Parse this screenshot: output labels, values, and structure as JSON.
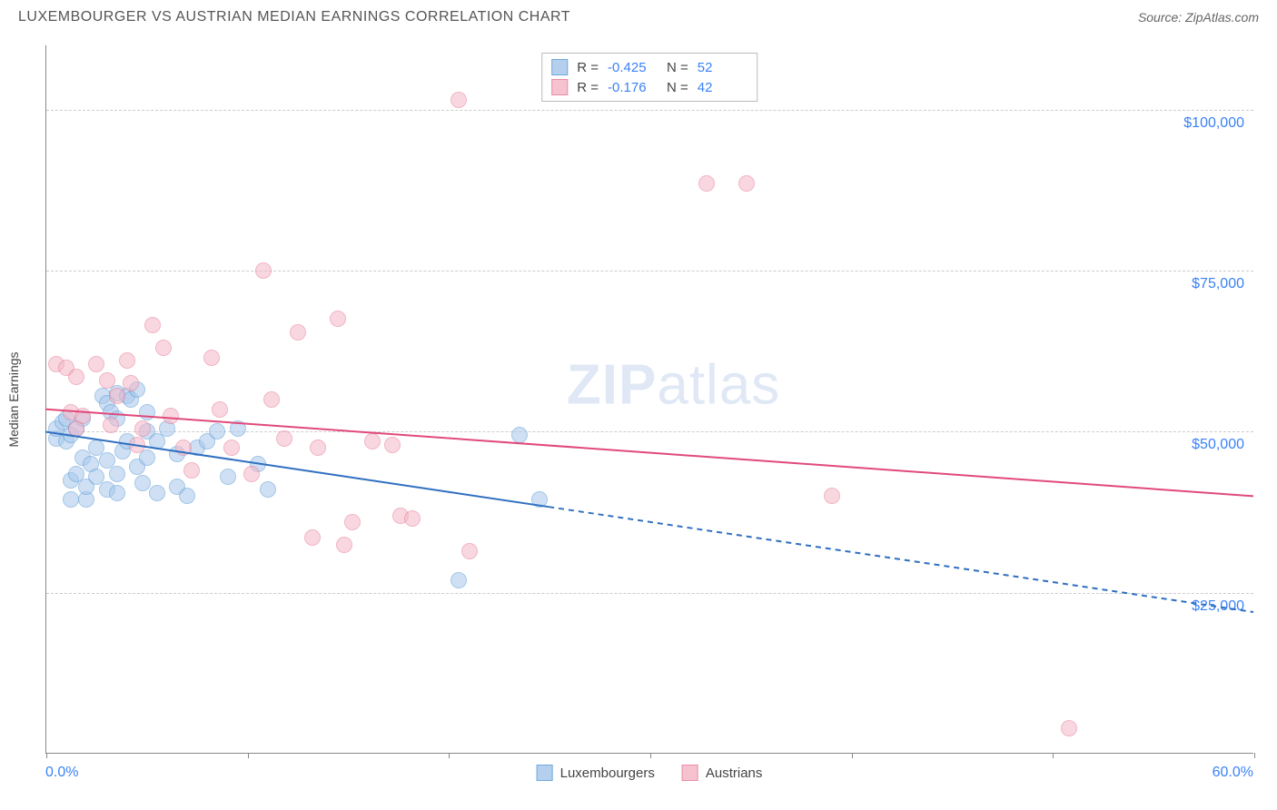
{
  "title": "LUXEMBOURGER VS AUSTRIAN MEDIAN EARNINGS CORRELATION CHART",
  "source_label": "Source: ZipAtlas.com",
  "watermark_bold": "ZIP",
  "watermark_rest": "atlas",
  "chart": {
    "type": "scatter",
    "ylabel": "Median Earnings",
    "xlim": [
      0,
      60
    ],
    "ylim": [
      0,
      110000
    ],
    "x_tick_positions": [
      0,
      10,
      20,
      30,
      40,
      50,
      60
    ],
    "x_start_label": "0.0%",
    "x_end_label": "60.0%",
    "y_gridlines": [
      25000,
      50000,
      75000,
      100000
    ],
    "y_tick_labels": [
      "$25,000",
      "$50,000",
      "$75,000",
      "$100,000"
    ],
    "grid_color": "#cccccc",
    "axis_color": "#888888",
    "background_color": "#ffffff",
    "marker_radius": 9,
    "marker_stroke_width": 1.5,
    "series": [
      {
        "name": "Luxembourgers",
        "fill_color": "#a8c8ec",
        "stroke_color": "#5a9bd5",
        "fill_opacity": 0.55,
        "R": "-0.425",
        "N": "52",
        "trend_line": {
          "y_at_x0": 50000,
          "y_at_x60": 22000,
          "solid_until_x": 25,
          "color": "#2f6fc0",
          "width": 2
        },
        "points": [
          [
            0.5,
            49000
          ],
          [
            0.5,
            50500
          ],
          [
            0.8,
            51500
          ],
          [
            1.0,
            48500
          ],
          [
            1.0,
            52000
          ],
          [
            1.2,
            49500
          ],
          [
            1.2,
            42500
          ],
          [
            1.2,
            39500
          ],
          [
            1.5,
            50500
          ],
          [
            1.5,
            43500
          ],
          [
            1.8,
            52000
          ],
          [
            1.8,
            46000
          ],
          [
            2.0,
            39500
          ],
          [
            2.0,
            41500
          ],
          [
            2.2,
            45000
          ],
          [
            2.5,
            43000
          ],
          [
            2.5,
            47500
          ],
          [
            2.8,
            55500
          ],
          [
            3.0,
            54500
          ],
          [
            3.0,
            45500
          ],
          [
            3.0,
            41000
          ],
          [
            3.2,
            53000
          ],
          [
            3.5,
            56000
          ],
          [
            3.5,
            52000
          ],
          [
            3.5,
            43500
          ],
          [
            3.5,
            40500
          ],
          [
            3.8,
            47000
          ],
          [
            4.0,
            55500
          ],
          [
            4.0,
            48500
          ],
          [
            4.2,
            55000
          ],
          [
            4.5,
            56500
          ],
          [
            4.5,
            44500
          ],
          [
            4.8,
            42000
          ],
          [
            5.0,
            53000
          ],
          [
            5.0,
            50000
          ],
          [
            5.0,
            46000
          ],
          [
            5.5,
            48500
          ],
          [
            5.5,
            40500
          ],
          [
            6.0,
            50500
          ],
          [
            6.5,
            46500
          ],
          [
            6.5,
            41500
          ],
          [
            7.0,
            40000
          ],
          [
            7.5,
            47500
          ],
          [
            8.0,
            48500
          ],
          [
            8.5,
            50000
          ],
          [
            9.0,
            43000
          ],
          [
            9.5,
            50500
          ],
          [
            10.5,
            45000
          ],
          [
            11.0,
            41000
          ],
          [
            20.5,
            27000
          ],
          [
            23.5,
            49500
          ],
          [
            24.5,
            39500
          ]
        ]
      },
      {
        "name": "Austrians",
        "fill_color": "#f5b8c8",
        "stroke_color": "#e57a95",
        "fill_opacity": 0.55,
        "R": "-0.176",
        "N": "42",
        "trend_line": {
          "y_at_x0": 53500,
          "y_at_x60": 40000,
          "solid_until_x": 60,
          "color": "#e04a7a",
          "width": 2
        },
        "points": [
          [
            0.5,
            60500
          ],
          [
            1.0,
            60000
          ],
          [
            1.2,
            53000
          ],
          [
            1.5,
            58500
          ],
          [
            1.5,
            50500
          ],
          [
            1.8,
            52500
          ],
          [
            2.5,
            60500
          ],
          [
            3.0,
            58000
          ],
          [
            3.2,
            51000
          ],
          [
            3.5,
            55500
          ],
          [
            4.0,
            61000
          ],
          [
            4.2,
            57500
          ],
          [
            4.5,
            48000
          ],
          [
            4.8,
            50500
          ],
          [
            5.3,
            66500
          ],
          [
            5.8,
            63000
          ],
          [
            6.2,
            52500
          ],
          [
            6.8,
            47500
          ],
          [
            7.2,
            44000
          ],
          [
            8.2,
            61500
          ],
          [
            8.6,
            53500
          ],
          [
            9.2,
            47500
          ],
          [
            10.2,
            43500
          ],
          [
            10.8,
            75000
          ],
          [
            11.2,
            55000
          ],
          [
            11.8,
            49000
          ],
          [
            12.5,
            65500
          ],
          [
            13.2,
            33500
          ],
          [
            13.5,
            47500
          ],
          [
            14.5,
            67500
          ],
          [
            14.8,
            32500
          ],
          [
            15.2,
            36000
          ],
          [
            16.2,
            48500
          ],
          [
            17.2,
            48000
          ],
          [
            17.6,
            37000
          ],
          [
            18.2,
            36500
          ],
          [
            20.5,
            101500
          ],
          [
            21.0,
            31500
          ],
          [
            32.8,
            88500
          ],
          [
            34.8,
            88500
          ],
          [
            39.0,
            40000
          ],
          [
            50.8,
            4000
          ]
        ]
      }
    ]
  },
  "legend_top": {
    "R_label": "R =",
    "N_label": "N ="
  }
}
